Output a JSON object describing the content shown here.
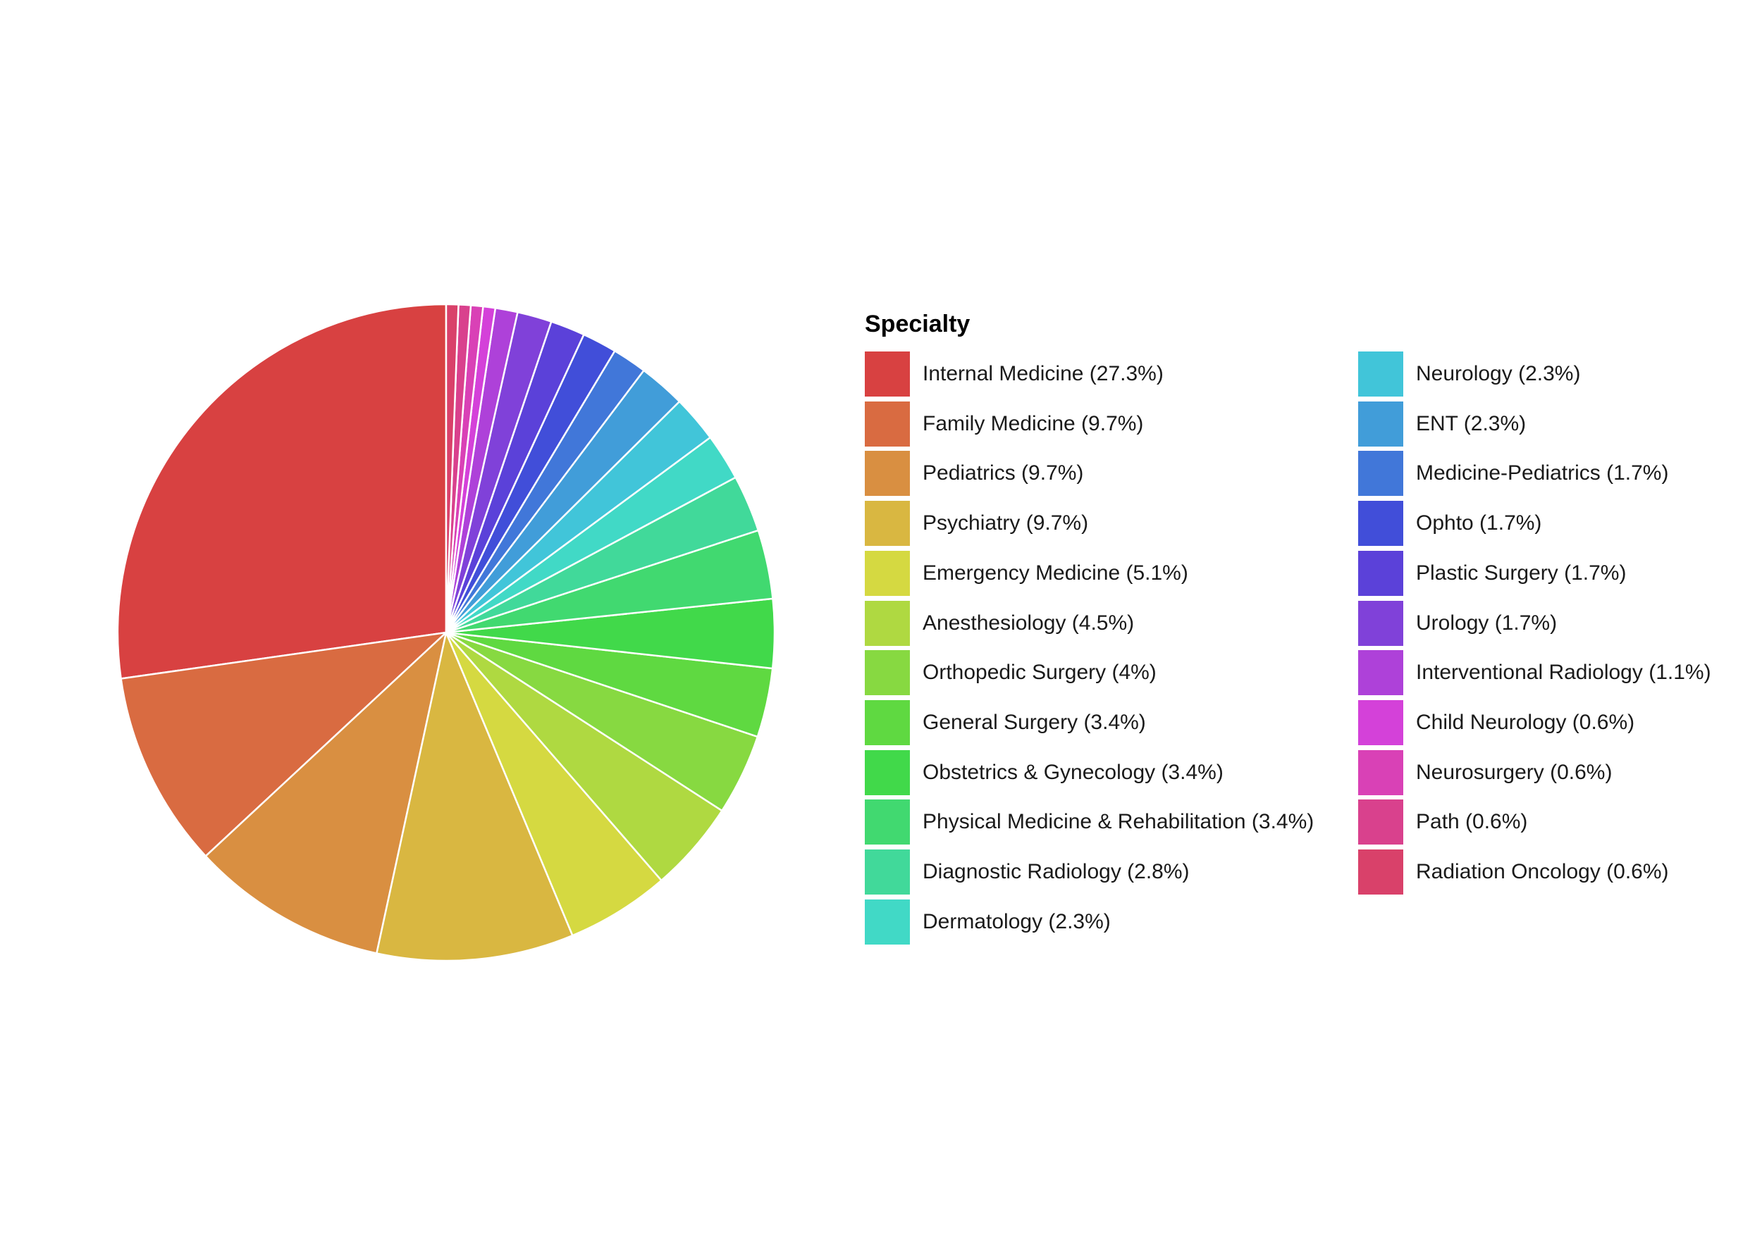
{
  "chart_data": {
    "type": "pie",
    "legend_title": "Specialty",
    "legend_position": "right",
    "start_angle": "12 o'clock",
    "direction": "counterclockwise",
    "categories": [
      "Internal Medicine",
      "Family Medicine",
      "Pediatrics",
      "Psychiatry",
      "Emergency Medicine",
      "Anesthesiology",
      "Orthopedic Surgery",
      "General Surgery",
      "Obstetrics & Gynecology",
      "Physical Medicine & Rehabilitation",
      "Diagnostic Radiology",
      "Dermatology",
      "Neurology",
      "ENT",
      "Medicine-Pediatrics",
      "Ophto",
      "Plastic Surgery",
      "Urology",
      "Interventional Radiology",
      "Child Neurology",
      "Neurosurgery",
      "Path",
      "Radiation Oncology"
    ],
    "values": [
      27.3,
      9.7,
      9.7,
      9.7,
      5.1,
      4.5,
      4.0,
      3.4,
      3.4,
      3.4,
      2.8,
      2.3,
      2.3,
      2.3,
      1.7,
      1.7,
      1.7,
      1.7,
      1.1,
      0.6,
      0.6,
      0.6,
      0.6
    ],
    "labels": [
      "Internal Medicine (27.3%)",
      "Family Medicine (9.7%)",
      "Pediatrics (9.7%)",
      "Psychiatry (9.7%)",
      "Emergency Medicine (5.1%)",
      "Anesthesiology (4.5%)",
      "Orthopedic Surgery (4%)",
      "General Surgery (3.4%)",
      "Obstetrics & Gynecology (3.4%)",
      "Physical Medicine & Rehabilitation (3.4%)",
      "Diagnostic Radiology (2.8%)",
      "Dermatology (2.3%)",
      "Neurology (2.3%)",
      "ENT (2.3%)",
      "Medicine-Pediatrics (1.7%)",
      "Ophto (1.7%)",
      "Plastic Surgery (1.7%)",
      "Urology (1.7%)",
      "Interventional Radiology (1.1%)",
      "Child Neurology (0.6%)",
      "Neurosurgery (0.6%)",
      "Path (0.6%)",
      "Radiation Oncology (0.6%)"
    ],
    "colors": [
      "#D84141",
      "#D96B41",
      "#D98F41",
      "#D9B741",
      "#D5D941",
      "#AFD941",
      "#87D941",
      "#5FD941",
      "#41D94A",
      "#41D970",
      "#41D99A",
      "#41D9C6",
      "#41C5D9",
      "#419DD9",
      "#4177D9",
      "#414ED9",
      "#5B41D9",
      "#8041D9",
      "#AE41D9",
      "#D441D9",
      "#D941B6",
      "#D9418D",
      "#D9416A"
    ]
  }
}
